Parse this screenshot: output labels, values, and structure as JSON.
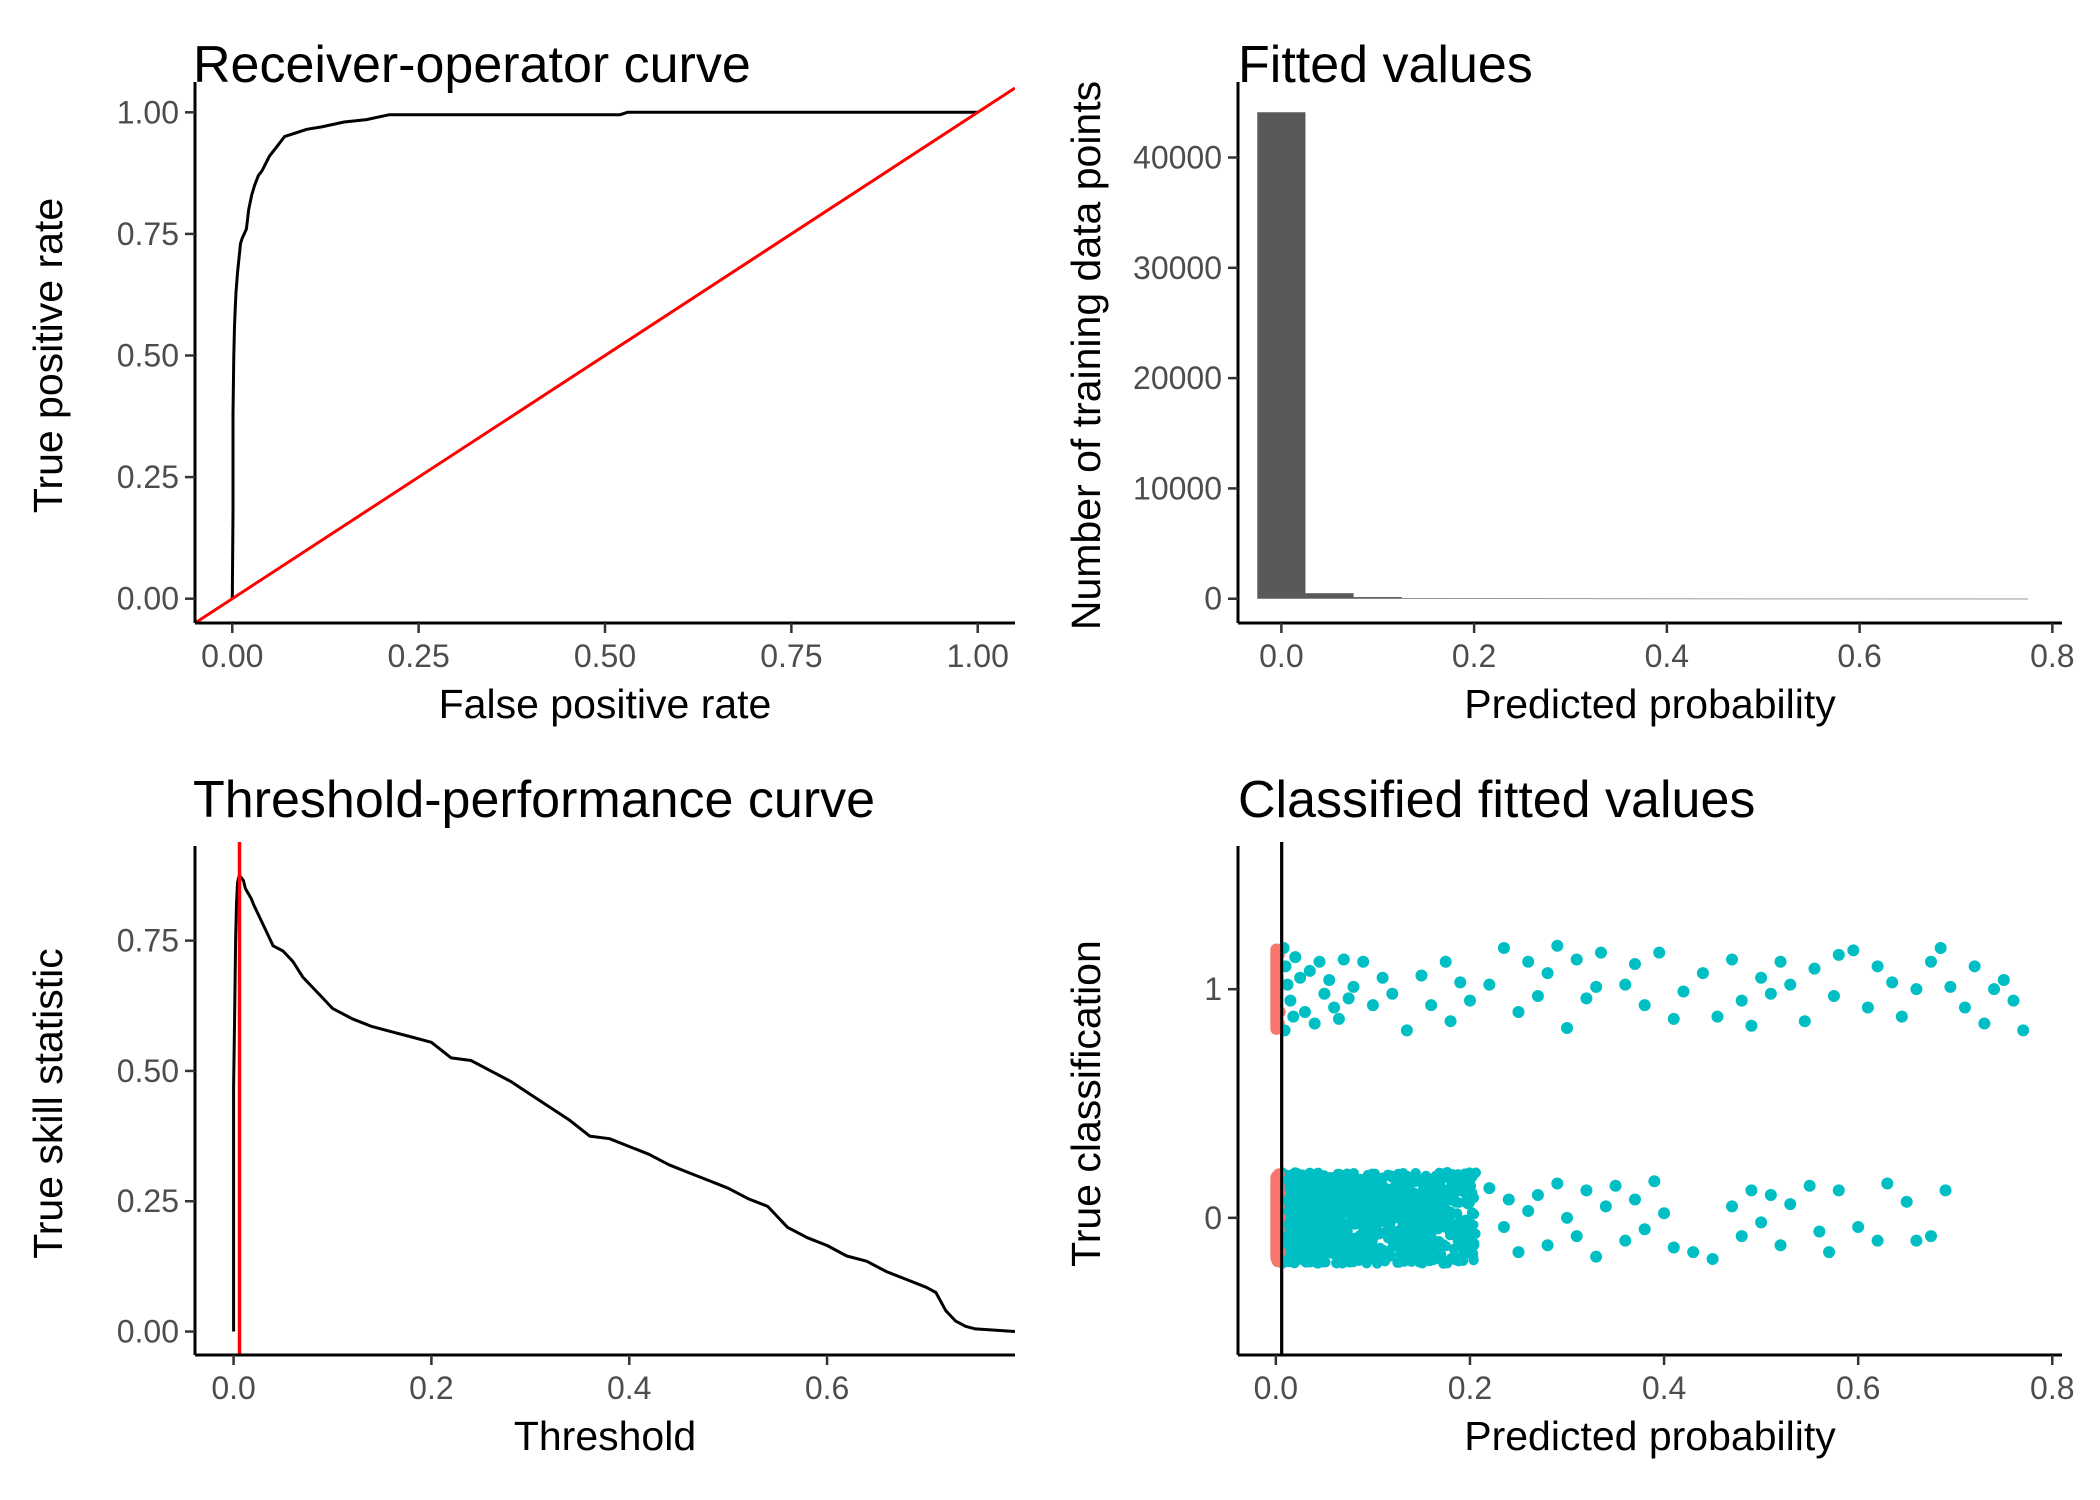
{
  "chart_data": [
    {
      "id": "roc",
      "type": "line",
      "title": "Receiver-operator curve",
      "xlabel": "False positive rate",
      "ylabel": "True positive rate",
      "xlim": [
        -0.05,
        1.05
      ],
      "ylim": [
        -0.05,
        1.05
      ],
      "xticks": [
        0,
        0.25,
        0.5,
        0.75,
        1
      ],
      "xtick_labels": [
        "0.00",
        "0.25",
        "0.50",
        "0.75",
        "1.00"
      ],
      "yticks": [
        0,
        0.25,
        0.5,
        0.75,
        1
      ],
      "ytick_labels": [
        "0.00",
        "0.25",
        "0.50",
        "0.75",
        "1.00"
      ],
      "grid": false,
      "series": [
        {
          "color": "#000000",
          "x": [
            0,
            0.001,
            0.001,
            0.002,
            0.003,
            0.004,
            0.005,
            0.007,
            0.009,
            0.011,
            0.013,
            0.016,
            0.019,
            0.022,
            0.026,
            0.03,
            0.035,
            0.04,
            0.05,
            0.06,
            0.07,
            0.08,
            0.1,
            0.12,
            0.15,
            0.18,
            0.21,
            0.3,
            0.52,
            0.53,
            0.7,
            0.85,
            0.99,
            1.0
          ],
          "y": [
            0,
            0.18,
            0.38,
            0.5,
            0.56,
            0.6,
            0.63,
            0.67,
            0.7,
            0.73,
            0.74,
            0.75,
            0.76,
            0.8,
            0.83,
            0.85,
            0.87,
            0.88,
            0.91,
            0.93,
            0.95,
            0.955,
            0.965,
            0.97,
            0.98,
            0.985,
            0.995,
            0.995,
            0.995,
            1.0,
            1.0,
            1.0,
            1.0,
            1.0
          ]
        },
        {
          "color": "#ff0000",
          "x": [
            -0.05,
            1.05
          ],
          "y": [
            -0.05,
            1.05
          ]
        }
      ]
    },
    {
      "id": "hist",
      "type": "bar",
      "title": "Fitted values",
      "xlabel": "Predicted probability",
      "ylabel": "Number of training data points",
      "xlim": [
        -0.045,
        0.81
      ],
      "ylim": [
        -2200,
        46300
      ],
      "xticks": [
        0,
        0.2,
        0.4,
        0.6,
        0.8
      ],
      "xtick_labels": [
        "0.0",
        "0.2",
        "0.4",
        "0.6",
        "0.8"
      ],
      "yticks": [
        0,
        10000,
        20000,
        30000,
        40000
      ],
      "ytick_labels": [
        "0",
        "10000",
        "20000",
        "30000",
        "40000"
      ],
      "grid": false,
      "bin_width": 0.05,
      "bin_centers": [
        0,
        0.05,
        0.1,
        0.15,
        0.2,
        0.25,
        0.3,
        0.35,
        0.4,
        0.45,
        0.5,
        0.55,
        0.6,
        0.65,
        0.7,
        0.75
      ],
      "values": [
        44100,
        500,
        150,
        60,
        40,
        30,
        25,
        20,
        15,
        12,
        10,
        10,
        8,
        6,
        6,
        5
      ],
      "color": "#595959"
    },
    {
      "id": "tss",
      "type": "line",
      "title": "Threshold-performance curve",
      "xlabel": "Threshold",
      "ylabel": "True skill statistic",
      "xlim": [
        -0.039,
        0.79
      ],
      "ylim": [
        -0.045,
        0.92
      ],
      "xticks": [
        0,
        0.2,
        0.4,
        0.6
      ],
      "xtick_labels": [
        "0.0",
        "0.2",
        "0.4",
        "0.6"
      ],
      "yticks": [
        0,
        0.25,
        0.5,
        0.75
      ],
      "ytick_labels": [
        "0.00",
        "0.25",
        "0.50",
        "0.75"
      ],
      "grid": false,
      "threshold": 0.006,
      "threshold_color": "#ff0000",
      "series": [
        {
          "color": "#000000",
          "x": [
            0,
            0,
            0.001,
            0.002,
            0.003,
            0.004,
            0.005,
            0.006,
            0.008,
            0.01,
            0.012,
            0.015,
            0.018,
            0.02,
            0.025,
            0.03,
            0.035,
            0.04,
            0.05,
            0.06,
            0.07,
            0.08,
            0.09,
            0.1,
            0.12,
            0.14,
            0.16,
            0.18,
            0.2,
            0.22,
            0.24,
            0.26,
            0.28,
            0.3,
            0.32,
            0.34,
            0.36,
            0.38,
            0.4,
            0.42,
            0.44,
            0.46,
            0.48,
            0.5,
            0.52,
            0.54,
            0.56,
            0.58,
            0.6,
            0.62,
            0.64,
            0.66,
            0.68,
            0.7,
            0.71,
            0.72,
            0.73,
            0.74,
            0.75,
            0.79
          ],
          "y": [
            0,
            0.47,
            0.6,
            0.75,
            0.82,
            0.86,
            0.87,
            0.875,
            0.87,
            0.865,
            0.85,
            0.84,
            0.83,
            0.82,
            0.8,
            0.78,
            0.76,
            0.74,
            0.73,
            0.71,
            0.68,
            0.66,
            0.64,
            0.62,
            0.6,
            0.585,
            0.575,
            0.565,
            0.555,
            0.525,
            0.52,
            0.5,
            0.48,
            0.455,
            0.43,
            0.405,
            0.375,
            0.37,
            0.355,
            0.34,
            0.32,
            0.305,
            0.29,
            0.275,
            0.255,
            0.24,
            0.2,
            0.18,
            0.165,
            0.145,
            0.135,
            0.115,
            0.1,
            0.085,
            0.075,
            0.04,
            0.02,
            0.01,
            0.005,
            0
          ]
        }
      ]
    },
    {
      "id": "classified",
      "type": "scatter",
      "title": "Classified fitted values",
      "xlabel": "Predicted probability",
      "ylabel": "True classification",
      "xlim": [
        -0.039,
        0.81
      ],
      "ylim": [
        -0.6,
        1.6
      ],
      "xticks": [
        0,
        0.2,
        0.4,
        0.6,
        0.8
      ],
      "xtick_labels": [
        "0.0",
        "0.2",
        "0.4",
        "0.6",
        "0.8"
      ],
      "yticks": [
        0,
        1
      ],
      "ytick_labels": [
        "0",
        "1"
      ],
      "grid": false,
      "threshold": 0.006,
      "threshold_color": "#000000",
      "series": [
        {
          "color": "#f8766d",
          "points": [
            [
              0.001,
              0.18
            ],
            [
              0.002,
              0.1
            ],
            [
              0.001,
              0.02
            ],
            [
              0.003,
              -0.05
            ],
            [
              0.002,
              -0.12
            ],
            [
              0.001,
              -0.18
            ],
            [
              0.003,
              0.14
            ],
            [
              0.002,
              -0.02
            ],
            [
              0.001,
              0.08
            ],
            [
              0.004,
              -0.15
            ],
            [
              0.002,
              0.16
            ],
            [
              0.003,
              0.05
            ],
            [
              0.001,
              -0.08
            ],
            [
              0.004,
              0.11
            ],
            [
              0.002,
              -0.19
            ],
            [
              0.003,
              0.19
            ],
            [
              0.001,
              -0.13
            ],
            [
              0.004,
              0.0
            ],
            [
              0.003,
              1.15
            ],
            [
              0.002,
              1.05
            ],
            [
              0.001,
              0.97
            ],
            [
              0.004,
              0.9
            ],
            [
              0.002,
              1.1
            ],
            [
              0.003,
              0.85
            ]
          ]
        },
        {
          "color": "#00bfc4",
          "points": [
            [
              0.008,
              1.18
            ],
            [
              0.01,
              1.1
            ],
            [
              0.012,
              1.02
            ],
            [
              0.015,
              0.95
            ],
            [
              0.018,
              0.88
            ],
            [
              0.009,
              0.82
            ],
            [
              0.02,
              1.14
            ],
            [
              0.025,
              1.05
            ],
            [
              0.03,
              0.9
            ],
            [
              0.035,
              1.08
            ],
            [
              0.04,
              0.85
            ],
            [
              0.045,
              1.12
            ],
            [
              0.05,
              0.98
            ],
            [
              0.055,
              1.04
            ],
            [
              0.06,
              0.92
            ],
            [
              0.065,
              0.87
            ],
            [
              0.07,
              1.13
            ],
            [
              0.075,
              0.96
            ],
            [
              0.08,
              1.01
            ],
            [
              0.09,
              1.12
            ],
            [
              0.1,
              0.93
            ],
            [
              0.11,
              1.05
            ],
            [
              0.12,
              0.98
            ],
            [
              0.135,
              0.82
            ],
            [
              0.15,
              1.06
            ],
            [
              0.16,
              0.93
            ],
            [
              0.175,
              1.12
            ],
            [
              0.18,
              0.86
            ],
            [
              0.19,
              1.03
            ],
            [
              0.2,
              0.95
            ],
            [
              0.22,
              1.02
            ],
            [
              0.235,
              1.18
            ],
            [
              0.25,
              0.9
            ],
            [
              0.26,
              1.12
            ],
            [
              0.27,
              0.97
            ],
            [
              0.28,
              1.07
            ],
            [
              0.29,
              1.19
            ],
            [
              0.3,
              0.83
            ],
            [
              0.31,
              1.13
            ],
            [
              0.32,
              0.96
            ],
            [
              0.33,
              1.01
            ],
            [
              0.335,
              1.16
            ],
            [
              0.36,
              1.02
            ],
            [
              0.37,
              1.11
            ],
            [
              0.38,
              0.93
            ],
            [
              0.395,
              1.16
            ],
            [
              0.41,
              0.87
            ],
            [
              0.42,
              0.99
            ],
            [
              0.44,
              1.07
            ],
            [
              0.455,
              0.88
            ],
            [
              0.47,
              1.13
            ],
            [
              0.48,
              0.95
            ],
            [
              0.49,
              0.84
            ],
            [
              0.5,
              1.05
            ],
            [
              0.51,
              0.98
            ],
            [
              0.52,
              1.12
            ],
            [
              0.53,
              1.02
            ],
            [
              0.545,
              0.86
            ],
            [
              0.555,
              1.09
            ],
            [
              0.575,
              0.97
            ],
            [
              0.58,
              1.15
            ],
            [
              0.595,
              1.17
            ],
            [
              0.61,
              0.92
            ],
            [
              0.62,
              1.1
            ],
            [
              0.635,
              1.03
            ],
            [
              0.645,
              0.88
            ],
            [
              0.66,
              1.0
            ],
            [
              0.675,
              1.12
            ],
            [
              0.685,
              1.18
            ],
            [
              0.695,
              1.01
            ],
            [
              0.71,
              0.92
            ],
            [
              0.72,
              1.1
            ],
            [
              0.73,
              0.85
            ],
            [
              0.74,
              1.0
            ],
            [
              0.75,
              1.04
            ],
            [
              0.76,
              0.95
            ],
            [
              0.77,
              0.82
            ]
          ]
        },
        {
          "color": "#00bfc4",
          "points": [
            [
              0.22,
              0.13
            ],
            [
              0.235,
              -0.04
            ],
            [
              0.24,
              0.08
            ],
            [
              0.25,
              -0.15
            ],
            [
              0.26,
              0.03
            ],
            [
              0.27,
              0.1
            ],
            [
              0.28,
              -0.12
            ],
            [
              0.29,
              0.15
            ],
            [
              0.3,
              0.0
            ],
            [
              0.31,
              -0.08
            ],
            [
              0.32,
              0.12
            ],
            [
              0.33,
              -0.17
            ],
            [
              0.34,
              0.05
            ],
            [
              0.35,
              0.14
            ],
            [
              0.36,
              -0.1
            ],
            [
              0.37,
              0.08
            ],
            [
              0.38,
              -0.05
            ],
            [
              0.39,
              0.16
            ],
            [
              0.4,
              0.02
            ],
            [
              0.41,
              -0.13
            ],
            [
              0.43,
              -0.15
            ],
            [
              0.45,
              -0.18
            ],
            [
              0.47,
              0.05
            ],
            [
              0.48,
              -0.08
            ],
            [
              0.49,
              0.12
            ],
            [
              0.5,
              -0.02
            ],
            [
              0.51,
              0.1
            ],
            [
              0.52,
              -0.12
            ],
            [
              0.53,
              0.06
            ],
            [
              0.55,
              0.14
            ],
            [
              0.56,
              -0.06
            ],
            [
              0.58,
              0.12
            ],
            [
              0.6,
              -0.04
            ],
            [
              0.63,
              0.15
            ],
            [
              0.65,
              0.07
            ],
            [
              0.66,
              -0.1
            ],
            [
              0.675,
              -0.08
            ],
            [
              0.69,
              0.12
            ],
            [
              0.62,
              -0.1
            ],
            [
              0.57,
              -0.15
            ]
          ]
        }
      ]
    }
  ]
}
